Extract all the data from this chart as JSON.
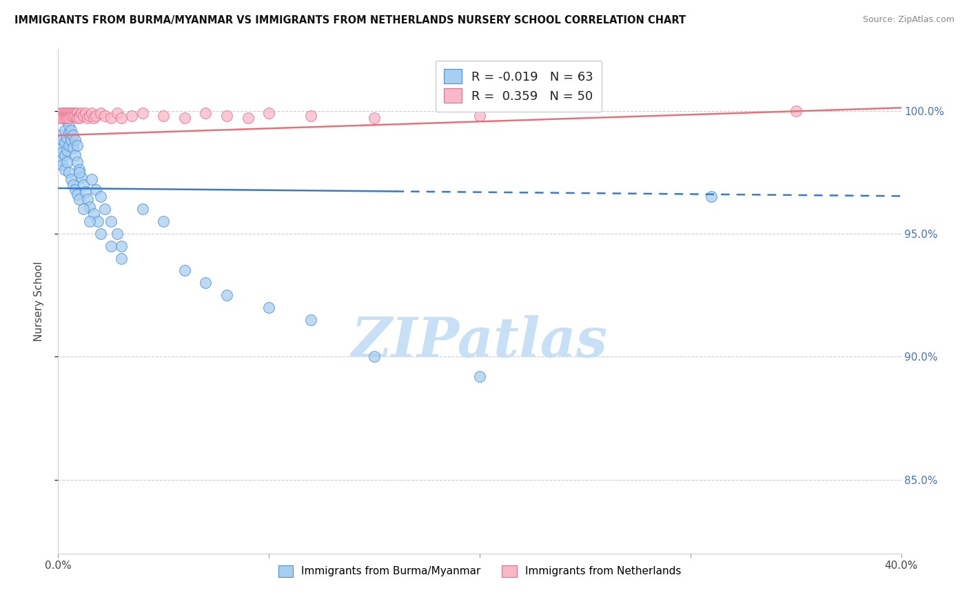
{
  "title": "IMMIGRANTS FROM BURMA/MYANMAR VS IMMIGRANTS FROM NETHERLANDS NURSERY SCHOOL CORRELATION CHART",
  "source": "Source: ZipAtlas.com",
  "ylabel": "Nursery School",
  "ytick_values": [
    0.85,
    0.9,
    0.95,
    1.0
  ],
  "ytick_labels": [
    "85.0%",
    "90.0%",
    "95.0%",
    "100.0%"
  ],
  "xlim": [
    0.0,
    0.4
  ],
  "ylim": [
    0.82,
    1.025
  ],
  "legend_blue_R": "-0.019",
  "legend_blue_N": "63",
  "legend_pink_R": "0.359",
  "legend_pink_N": "50",
  "blue_fill": "#a8cef0",
  "blue_edge": "#4a90d9",
  "pink_fill": "#f9b8c8",
  "pink_edge": "#e07090",
  "blue_line_color": "#3a78c9",
  "pink_line_color": "#e8707a",
  "blue_line_dash_start": 0.16,
  "watermark_text": "ZIPatlas",
  "watermark_color": "#c8e0f5",
  "legend_label_blue": "Immigrants from Burma/Myanmar",
  "legend_label_pink": "Immigrants from Netherlands",
  "blue_trend_intercept": 0.9685,
  "blue_trend_slope": -0.008,
  "pink_trend_intercept": 0.99,
  "pink_trend_slope": 0.028,
  "blue_x": [
    0.001,
    0.001,
    0.001,
    0.002,
    0.002,
    0.002,
    0.003,
    0.003,
    0.003,
    0.003,
    0.004,
    0.004,
    0.004,
    0.005,
    0.005,
    0.005,
    0.006,
    0.006,
    0.007,
    0.007,
    0.008,
    0.008,
    0.009,
    0.009,
    0.01,
    0.01,
    0.011,
    0.012,
    0.013,
    0.014,
    0.015,
    0.016,
    0.017,
    0.018,
    0.019,
    0.02,
    0.022,
    0.025,
    0.028,
    0.03,
    0.003,
    0.004,
    0.005,
    0.006,
    0.007,
    0.008,
    0.009,
    0.01,
    0.012,
    0.015,
    0.02,
    0.025,
    0.03,
    0.04,
    0.05,
    0.06,
    0.07,
    0.08,
    0.1,
    0.12,
    0.15,
    0.2,
    0.31
  ],
  "blue_y": [
    0.99,
    0.985,
    0.98,
    0.988,
    0.983,
    0.978,
    0.992,
    0.987,
    0.982,
    0.976,
    0.989,
    0.984,
    0.979,
    0.991,
    0.986,
    0.975,
    0.988,
    0.972,
    0.985,
    0.97,
    0.982,
    0.968,
    0.979,
    0.966,
    0.976,
    0.964,
    0.973,
    0.97,
    0.967,
    0.964,
    0.961,
    0.972,
    0.958,
    0.968,
    0.955,
    0.965,
    0.96,
    0.955,
    0.95,
    0.945,
    0.998,
    0.996,
    0.994,
    0.992,
    0.99,
    0.988,
    0.986,
    0.975,
    0.96,
    0.955,
    0.95,
    0.945,
    0.94,
    0.96,
    0.955,
    0.935,
    0.93,
    0.925,
    0.92,
    0.915,
    0.9,
    0.892,
    0.965
  ],
  "pink_x": [
    0.001,
    0.001,
    0.001,
    0.002,
    0.002,
    0.002,
    0.003,
    0.003,
    0.003,
    0.004,
    0.004,
    0.004,
    0.005,
    0.005,
    0.005,
    0.006,
    0.006,
    0.007,
    0.007,
    0.008,
    0.008,
    0.009,
    0.009,
    0.01,
    0.01,
    0.011,
    0.012,
    0.013,
    0.014,
    0.015,
    0.016,
    0.017,
    0.018,
    0.02,
    0.022,
    0.025,
    0.028,
    0.03,
    0.035,
    0.04,
    0.05,
    0.06,
    0.07,
    0.08,
    0.09,
    0.1,
    0.12,
    0.15,
    0.2,
    0.35
  ],
  "pink_y": [
    0.999,
    0.998,
    0.997,
    0.999,
    0.998,
    0.997,
    0.999,
    0.998,
    0.997,
    0.999,
    0.998,
    0.997,
    0.999,
    0.998,
    0.997,
    0.999,
    0.998,
    0.999,
    0.998,
    0.999,
    0.998,
    0.999,
    0.997,
    0.998,
    0.997,
    0.999,
    0.998,
    0.999,
    0.997,
    0.998,
    0.999,
    0.997,
    0.998,
    0.999,
    0.998,
    0.997,
    0.999,
    0.997,
    0.998,
    0.999,
    0.998,
    0.997,
    0.999,
    0.998,
    0.997,
    0.999,
    0.998,
    0.997,
    0.998,
    1.0
  ]
}
